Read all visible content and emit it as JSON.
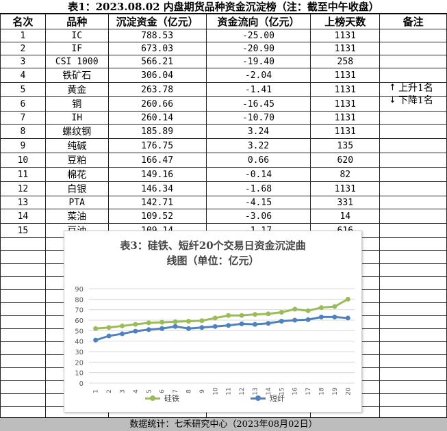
{
  "title": "表1：2023.08.02  内盘期货品种资金沉淀榜（注：截至中午收盘）",
  "headers": [
    "名次",
    "品种",
    "沉淀资金（亿元）",
    "资金流向（亿元）",
    "上榜天数",
    "备注"
  ],
  "rows": [
    [
      "1",
      "IC",
      "788.53",
      "-25.00",
      "1131",
      ""
    ],
    [
      "2",
      "IF",
      "673.03",
      "-20.90",
      "1131",
      ""
    ],
    [
      "3",
      "CSI 1000",
      "566.21",
      "-19.40",
      "258",
      ""
    ],
    [
      "4",
      "铁矿石",
      "306.04",
      "-2.04",
      "1131",
      ""
    ],
    [
      "5",
      "黄金",
      "263.78",
      "-1.41",
      "1131",
      "上升1名"
    ],
    [
      "6",
      "铜",
      "260.66",
      "-16.45",
      "1131",
      "下降1名"
    ],
    [
      "7",
      "IH",
      "260.14",
      "-10.70",
      "1131",
      ""
    ],
    [
      "8",
      "螺纹钢",
      "185.89",
      "3.24",
      "1131",
      ""
    ],
    [
      "9",
      "纯碱",
      "176.75",
      "3.22",
      "135",
      ""
    ],
    [
      "10",
      "豆粕",
      "166.47",
      "0.66",
      "620",
      ""
    ],
    [
      "11",
      "棉花",
      "149.16",
      "-0.14",
      "82",
      ""
    ],
    [
      "12",
      "白银",
      "146.34",
      "-1.68",
      "1131",
      ""
    ],
    [
      "13",
      "PTA",
      "142.71",
      "-4.15",
      "331",
      ""
    ],
    [
      "14",
      "菜油",
      "109.52",
      "-3.06",
      "14",
      ""
    ],
    [
      "15",
      "豆油",
      "109.14",
      "-1.17",
      "616",
      ""
    ]
  ],
  "notes": [
    {
      "arrow": "↑",
      "text": "上升1名"
    },
    {
      "arrow": "↓",
      "text": "下降1名"
    }
  ],
  "footer": "数据统计：七禾研究中心（2023年08月02日）",
  "chart_data": {
    "type": "line",
    "title_line1": "表3：硅铁、短纤20个交易日资金沉淀曲",
    "title_line2": "线图（单位：亿元）",
    "x": [
      1,
      2,
      3,
      4,
      5,
      6,
      7,
      8,
      9,
      10,
      11,
      12,
      13,
      14,
      15,
      16,
      17,
      18,
      19,
      20
    ],
    "ylim": [
      0,
      90
    ],
    "yticks": [
      0,
      10,
      20,
      30,
      40,
      50,
      60,
      70,
      80,
      90
    ],
    "grid": true,
    "legend": "bottom",
    "series": [
      {
        "name": "硅铁",
        "color": "#9bbb59",
        "values": [
          52,
          53,
          54.5,
          56,
          57.5,
          58,
          58.5,
          59,
          59.5,
          62,
          64.5,
          64.5,
          65.5,
          66,
          67.5,
          70.5,
          69,
          72,
          73,
          80
        ]
      },
      {
        "name": "短纤",
        "color": "#4f81bd",
        "values": [
          41,
          45,
          47,
          49.5,
          51,
          52,
          54,
          52,
          53,
          54,
          55,
          56.5,
          56,
          57,
          59,
          60,
          60.5,
          63,
          63,
          62
        ]
      }
    ]
  }
}
